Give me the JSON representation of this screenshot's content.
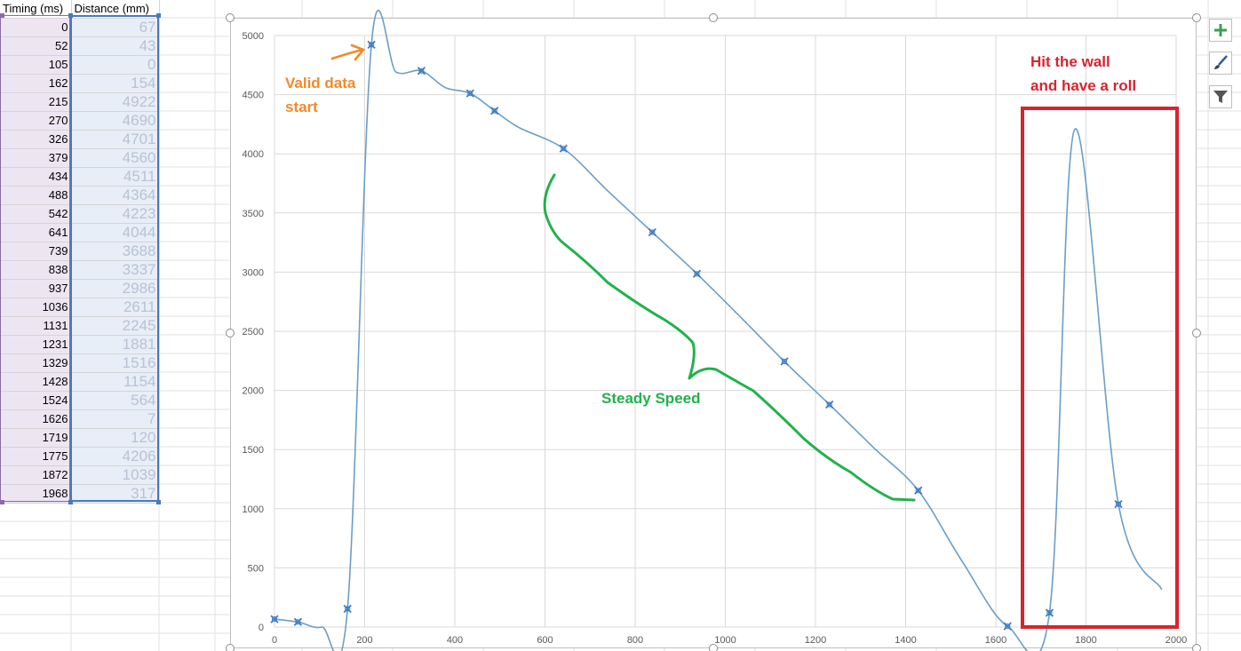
{
  "sheet": {
    "headers": [
      "Timing (ms)",
      "Distance (mm)"
    ],
    "rows": [
      [
        "0",
        "67"
      ],
      [
        "52",
        "43"
      ],
      [
        "105",
        "0"
      ],
      [
        "162",
        "154"
      ],
      [
        "215",
        "4922"
      ],
      [
        "270",
        "4690"
      ],
      [
        "326",
        "4701"
      ],
      [
        "379",
        "4560"
      ],
      [
        "434",
        "4511"
      ],
      [
        "488",
        "4364"
      ],
      [
        "542",
        "4223"
      ],
      [
        "641",
        "4044"
      ],
      [
        "739",
        "3688"
      ],
      [
        "838",
        "3337"
      ],
      [
        "937",
        "2986"
      ],
      [
        "1036",
        "2611"
      ],
      [
        "1131",
        "2245"
      ],
      [
        "1231",
        "1881"
      ],
      [
        "1329",
        "1516"
      ],
      [
        "1428",
        "1154"
      ],
      [
        "1524",
        "564"
      ],
      [
        "1626",
        "7"
      ],
      [
        "1719",
        "120"
      ],
      [
        "1775",
        "4206"
      ],
      [
        "1872",
        "1039"
      ],
      [
        "1968",
        "317"
      ]
    ]
  },
  "chart_data": {
    "type": "scatter",
    "title": "",
    "xlabel": "",
    "ylabel": "",
    "xlim": [
      0,
      2000
    ],
    "ylim": [
      0,
      5000
    ],
    "xticks": [
      0,
      200,
      400,
      600,
      800,
      1000,
      1200,
      1400,
      1600,
      1800,
      2000
    ],
    "yticks": [
      0,
      500,
      1000,
      1500,
      2000,
      2500,
      3000,
      3500,
      4000,
      4500,
      5000
    ],
    "grid": true,
    "legend": "none",
    "line_style": "smooth",
    "series": [
      {
        "x": [
          0,
          52,
          105,
          162,
          215,
          270,
          326,
          379,
          434,
          488,
          542,
          641,
          739,
          838,
          937,
          1036,
          1131,
          1231,
          1329,
          1428,
          1524,
          1626,
          1719,
          1775,
          1872,
          1968
        ],
        "y": [
          67,
          43,
          0,
          154,
          4922,
          4690,
          4701,
          4560,
          4511,
          4364,
          4223,
          4044,
          3688,
          3337,
          2986,
          2611,
          2245,
          1881,
          1516,
          1154,
          564,
          7,
          120,
          4206,
          1039,
          317
        ],
        "marker_visible": [
          true,
          true,
          false,
          true,
          true,
          false,
          true,
          false,
          true,
          true,
          false,
          true,
          false,
          true,
          true,
          false,
          true,
          true,
          false,
          true,
          false,
          true,
          true,
          false,
          true,
          false
        ]
      }
    ],
    "colors": {
      "line": "#6a9ec8",
      "marker": "#3f7cc4"
    },
    "annotations": {
      "valid_start": [
        "Valid data",
        "start"
      ],
      "steady": "Steady Speed",
      "wall": [
        "Hit the wall",
        "and have a roll"
      ]
    },
    "annotation_colors": {
      "orange": "#f08a2a",
      "green": "#22b14c",
      "red": "#d9232e"
    }
  },
  "tools": [
    "plus-icon",
    "brush-icon",
    "filter-icon"
  ]
}
